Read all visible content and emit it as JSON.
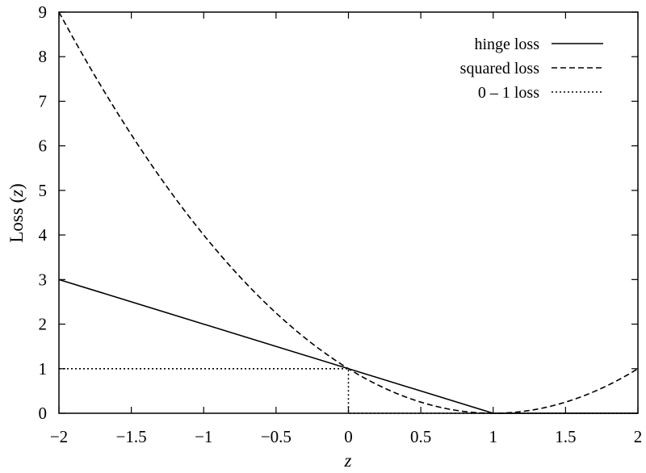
{
  "chart_data": {
    "type": "line",
    "title": "",
    "xlabel": "z",
    "ylabel": "Loss (z)",
    "xlim": [
      -2,
      2
    ],
    "ylim": [
      0,
      9
    ],
    "xticks": [
      "−2",
      "−1.5",
      "−1",
      "−0.5",
      "0",
      "0.5",
      "1",
      "1.5",
      "2"
    ],
    "yticks": [
      "0",
      "1",
      "2",
      "3",
      "4",
      "5",
      "6",
      "7",
      "8",
      "9"
    ],
    "grid": false,
    "legend_position": "top-right",
    "series": [
      {
        "name": "hinge loss",
        "style": "solid",
        "color": "#000000",
        "x": [
          -2,
          1,
          2
        ],
        "y": [
          3,
          0,
          0
        ]
      },
      {
        "name": "squared loss",
        "style": "dashed",
        "color": "#000000",
        "x": [
          -2,
          -1.75,
          -1.5,
          -1.25,
          -1,
          -0.75,
          -0.5,
          -0.25,
          0,
          0.25,
          0.5,
          0.75,
          1,
          1.25,
          1.5,
          1.75,
          2
        ],
        "y": [
          9,
          7.5625,
          6.25,
          5.0625,
          4,
          3.0625,
          2.25,
          1.5625,
          1,
          0.5625,
          0.25,
          0.0625,
          0,
          0.0625,
          0.25,
          0.5625,
          1
        ]
      },
      {
        "name": "0 – 1 loss",
        "style": "dotted",
        "color": "#000000",
        "x": [
          -2,
          0,
          0,
          2
        ],
        "y": [
          1,
          1,
          0,
          0
        ]
      }
    ]
  }
}
